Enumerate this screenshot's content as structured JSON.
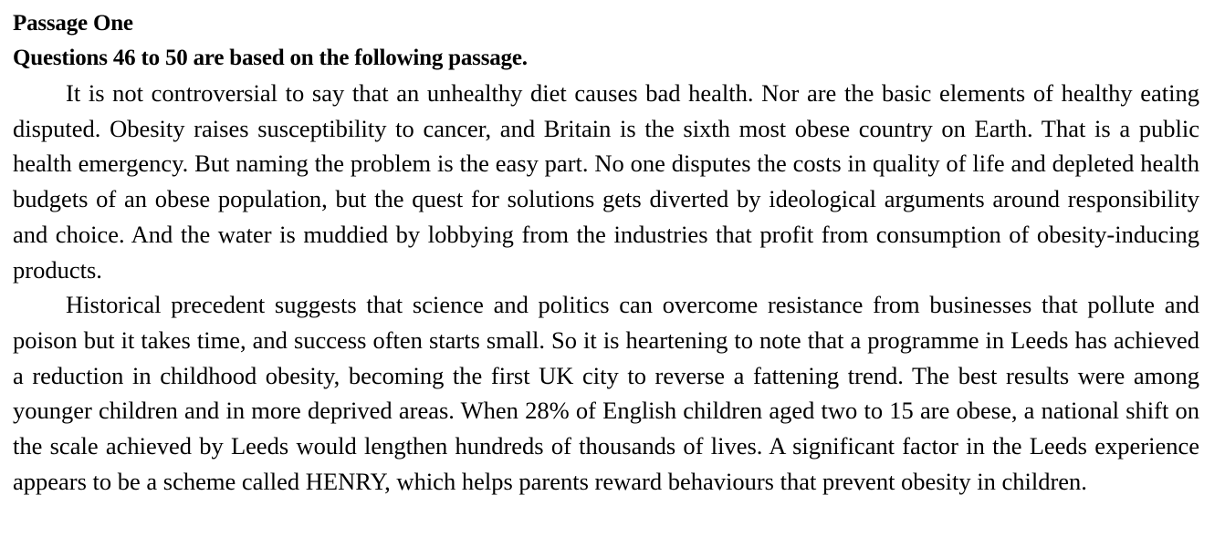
{
  "document": {
    "section_title": "Passage One",
    "instructions": "Questions 46 to 50 are based on the following passage.",
    "paragraphs": [
      "It is not controversial to say that an unhealthy diet causes bad health. Nor are the basic elements of healthy eating disputed. Obesity raises susceptibility to cancer, and Britain is the sixth most obese country on Earth. That is a public health emergency. But naming the problem is the easy part. No one disputes the costs in quality of life and depleted health budgets of an obese population, but the quest for solutions gets diverted by ideological arguments around responsibility and choice. And the water is muddied by lobbying from the industries that profit from consumption of obesity-inducing products.",
      "Historical precedent suggests that science and politics can overcome resistance from businesses that pollute and poison but it takes time, and success often starts small. So it is heartening to note that a programme in Leeds has achieved a reduction in childhood obesity, becoming the first UK city to reverse a fattening trend. The best results were among younger children and in more deprived areas. When 28% of English children aged two to 15 are obese, a national shift on the scale achieved by Leeds would lengthen hundreds of thousands of lives. A significant factor in the Leeds experience appears to be a scheme called HENRY, which helps parents reward behaviours that prevent obesity in children."
    ]
  }
}
